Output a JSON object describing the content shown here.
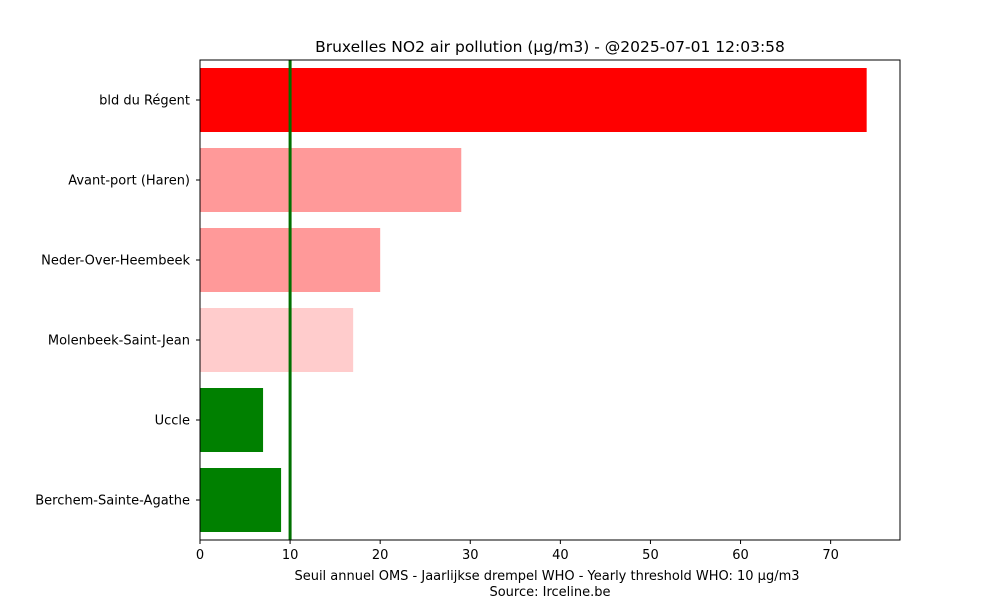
{
  "chart_data": {
    "type": "bar",
    "orientation": "horizontal",
    "title": "Bruxelles NO2 air pollution (µg/m3) - @2025-07-01 12:03:58",
    "xlabel": "Seuil annuel OMS - Jaarlijkse drempel WHO - Yearly threshold WHO: 10 µg/m3",
    "source": "Source: Irceline.be",
    "categories": [
      "bld du Régent",
      "Avant-port (Haren)",
      "Neder-Over-Heembeek",
      "Molenbeek-Saint-Jean",
      "Uccle",
      "Berchem-Sainte-Agathe"
    ],
    "values": [
      74,
      29,
      20,
      17,
      7,
      9
    ],
    "colors": [
      "#ff0000",
      "#ff9999",
      "#ff9999",
      "#ffcccc",
      "#008000",
      "#008000"
    ],
    "xlim": [
      0,
      77.7
    ],
    "xticks": [
      0,
      10,
      20,
      30,
      40,
      50,
      60,
      70
    ],
    "threshold": 10,
    "threshold_color": "#007000",
    "grid": false
  }
}
